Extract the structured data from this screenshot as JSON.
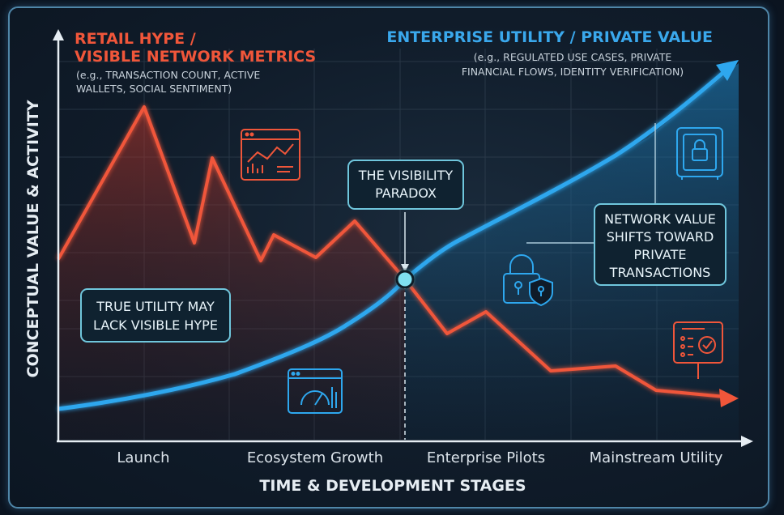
{
  "retail": {
    "title_line1": "RETAIL HYPE /",
    "title_line2": "VISIBLE NETWORK METRICS",
    "note_line1": "(e.g., TRANSACTION COUNT, ACTIVE",
    "note_line2": "WALLETS, SOCIAL SENTIMENT)"
  },
  "enterprise": {
    "title": "ENTERPRISE UTILITY / PRIVATE VALUE",
    "note_line1": "(e.g., REGULATED USE CASES, PRIVATE",
    "note_line2": "FINANCIAL FLOWS, IDENTITY VERIFICATION)"
  },
  "callouts": {
    "paradox_line1": "THE VISIBILITY",
    "paradox_line2": "PARADOX",
    "utility_line1": "TRUE UTILITY MAY",
    "utility_line2": "LACK VISIBLE HYPE",
    "shift_line1": "NETWORK VALUE",
    "shift_line2": "SHIFTS TOWARD",
    "shift_line3": "PRIVATE",
    "shift_line4": "TRANSACTIONS"
  },
  "axes": {
    "y_title": "CONCEPTUAL VALUE & ACTIVITY",
    "x_title": "TIME & DEVELOPMENT STAGES",
    "x_ticks": [
      "Launch",
      "Ecosystem Growth",
      "Enterprise Pilots",
      "Mainstream Utility"
    ]
  },
  "icons": [
    "chart-window-icon",
    "safe-lock-icon",
    "padlock-shield-icon",
    "gauge-dashboard-icon",
    "compliance-check-icon"
  ],
  "colors": {
    "retail_line": "#f0563a",
    "enterprise_line": "#2ea7ee",
    "callout_border": "#6fc6dc",
    "background": "#0f1b28"
  }
}
